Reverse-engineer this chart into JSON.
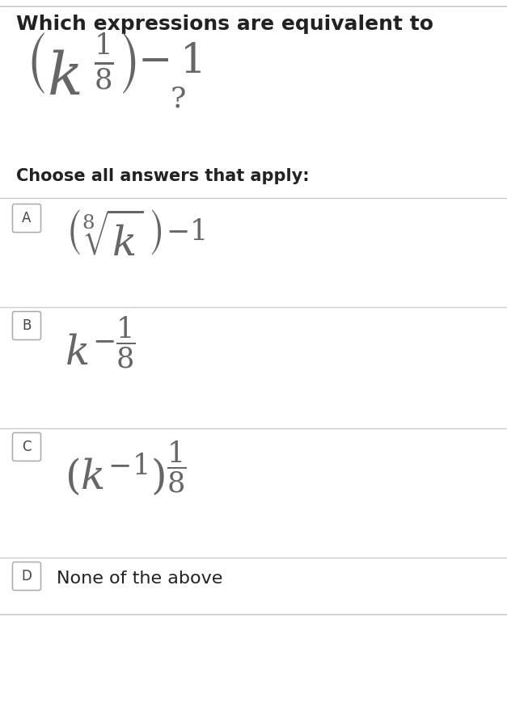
{
  "background_color": "#ffffff",
  "title_text": "Which expressions are equivalent to",
  "title_fontsize": 18,
  "question_color": "#666666",
  "subtitle_text": "Choose all answers that apply:",
  "subtitle_fontsize": 15,
  "answer_labels": [
    "A",
    "B",
    "C",
    "D"
  ],
  "answer_box_border": "#aaaaaa",
  "separator_color": "#cccccc",
  "text_color": "#222222",
  "label_color": "#444444",
  "math_color": "#555555",
  "top_bar_color": "#cccccc",
  "fig_width": 6.27,
  "fig_height": 8.86,
  "dpi": 100
}
